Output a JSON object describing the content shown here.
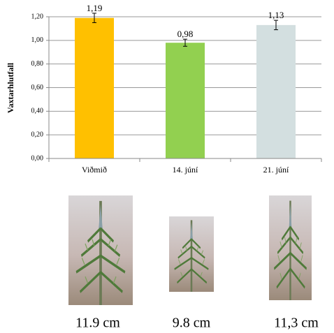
{
  "chart_data": {
    "type": "bar",
    "y_label": "Vaxtarhlutfall",
    "categories": [
      "Viðmið",
      "14. júní",
      "21. júní"
    ],
    "values": [
      1.19,
      0.98,
      1.13
    ],
    "value_labels": [
      "1,19",
      "0,98",
      "1,13"
    ],
    "errors": [
      0.04,
      0.03,
      0.04
    ],
    "colors": [
      "#ffc000",
      "#92d050",
      "#d3dfe0"
    ],
    "ylim": [
      0,
      1.2
    ],
    "yticks": [
      {
        "value": 0,
        "label": "0,00"
      },
      {
        "value": 0.2,
        "label": "0,20"
      },
      {
        "value": 0.4,
        "label": "0,40"
      },
      {
        "value": 0.6,
        "label": "0,60"
      },
      {
        "value": 0.8,
        "label": "0,80"
      },
      {
        "value": 1.0,
        "label": "1,00"
      },
      {
        "value": 1.2,
        "label": "1,20"
      }
    ],
    "grid": true
  },
  "photos": [
    {
      "caption": "11.9 cm"
    },
    {
      "caption": "9.8 cm"
    },
    {
      "caption": "11,3 cm"
    }
  ]
}
